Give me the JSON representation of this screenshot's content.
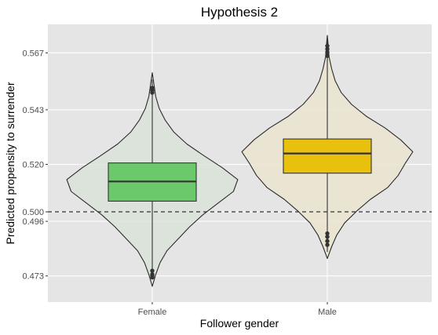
{
  "chart_data": {
    "type": "violin",
    "title": "Hypothesis 2",
    "xlabel": "Follower gender",
    "ylabel": "Predicted propensity to surrender",
    "categories": [
      "Female",
      "Male"
    ],
    "y_ticks": [
      0.473,
      0.496,
      0.5,
      0.52,
      0.543,
      0.567
    ],
    "y_tick_labels": [
      "0.473",
      "0.496",
      "0.500",
      "0.520",
      "0.543",
      "0.567"
    ],
    "ylim": [
      0.462,
      0.579
    ],
    "reference_line": {
      "value": 0.5,
      "style": "dashed"
    },
    "grid": true,
    "legend": "none",
    "series": [
      {
        "category": "Female",
        "violin_color": "#d9e3d9",
        "box_color": "#6bc96b",
        "min": 0.4716,
        "q1": 0.5045,
        "median": 0.5128,
        "q3": 0.5206,
        "max": 0.5557,
        "outliers": [
          0.5502,
          0.5512,
          0.5522,
          0.4752,
          0.4737,
          0.4724,
          0.4731
        ],
        "density": [
          [
            0.4686,
            0.0
          ],
          [
            0.4736,
            0.04
          ],
          [
            0.4786,
            0.09
          ],
          [
            0.4836,
            0.17
          ],
          [
            0.4886,
            0.3
          ],
          [
            0.4936,
            0.43
          ],
          [
            0.4986,
            0.58
          ],
          [
            0.5036,
            0.76
          ],
          [
            0.5086,
            0.94
          ],
          [
            0.5136,
            0.99
          ],
          [
            0.5186,
            0.81
          ],
          [
            0.5236,
            0.6
          ],
          [
            0.5286,
            0.4
          ],
          [
            0.5336,
            0.25
          ],
          [
            0.5386,
            0.15
          ],
          [
            0.5436,
            0.08
          ],
          [
            0.5486,
            0.04
          ],
          [
            0.5536,
            0.02
          ],
          [
            0.5586,
            0.0
          ]
        ]
      },
      {
        "category": "Male",
        "violin_color": "#ebe4d0",
        "box_color": "#e8c00e",
        "min": 0.4831,
        "q1": 0.5163,
        "median": 0.5246,
        "q3": 0.5307,
        "max": 0.5738,
        "outliers": [
          0.5672,
          0.5686,
          0.5699,
          0.5657,
          0.4909,
          0.4895,
          0.4877,
          0.4861
        ],
        "density": [
          [
            0.4803,
            0.0
          ],
          [
            0.4853,
            0.05
          ],
          [
            0.4903,
            0.11
          ],
          [
            0.4953,
            0.2
          ],
          [
            0.5003,
            0.34
          ],
          [
            0.5053,
            0.5
          ],
          [
            0.5103,
            0.7
          ],
          [
            0.5153,
            0.82
          ],
          [
            0.5203,
            0.9
          ],
          [
            0.5253,
            0.99
          ],
          [
            0.5303,
            0.85
          ],
          [
            0.5353,
            0.67
          ],
          [
            0.5403,
            0.45
          ],
          [
            0.5453,
            0.28
          ],
          [
            0.5503,
            0.16
          ],
          [
            0.5553,
            0.09
          ],
          [
            0.5603,
            0.05
          ],
          [
            0.5653,
            0.02
          ],
          [
            0.5703,
            0.01
          ],
          [
            0.5743,
            0.0
          ]
        ]
      }
    ]
  },
  "colors": {
    "panel_background": "#e5e5e5",
    "grid_major": "#ffffff",
    "violin_outline": "#2b2b2b",
    "box_outline": "#333333",
    "reference_line": "#333333"
  }
}
